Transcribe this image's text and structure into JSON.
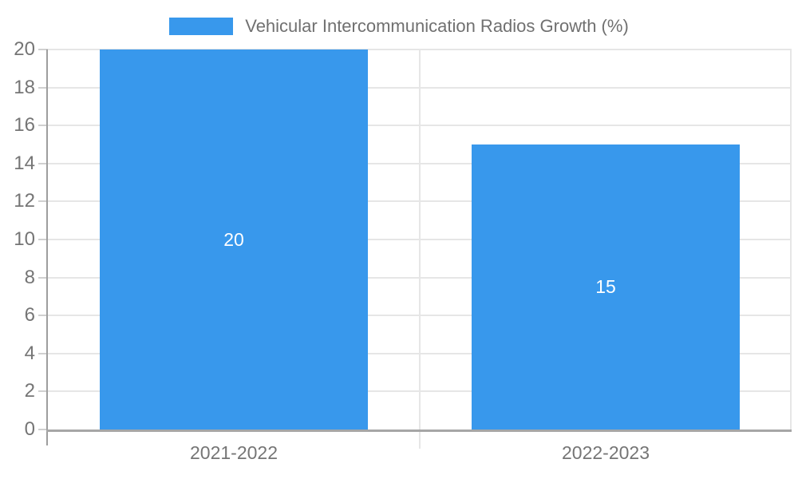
{
  "colors": {
    "bar": "#3898ec",
    "grid": "#e6e6e6",
    "axis": "#9e9e9e",
    "tick_label": "#757575",
    "value_label": "#ffffff"
  },
  "chart_data": {
    "type": "bar",
    "title": "",
    "xlabel": "",
    "ylabel": "",
    "legend": [
      "Vehicular Intercommunication Radios Growth (%)"
    ],
    "legend_position": "top",
    "categories": [
      "2021-2022",
      "2022-2023"
    ],
    "values": [
      20,
      15
    ],
    "value_labels": [
      "20",
      "15"
    ],
    "ylim": [
      0,
      20
    ],
    "ytick_step": 2,
    "yticks": [
      0,
      2,
      4,
      6,
      8,
      10,
      12,
      14,
      16,
      18,
      20
    ],
    "grid": true
  }
}
